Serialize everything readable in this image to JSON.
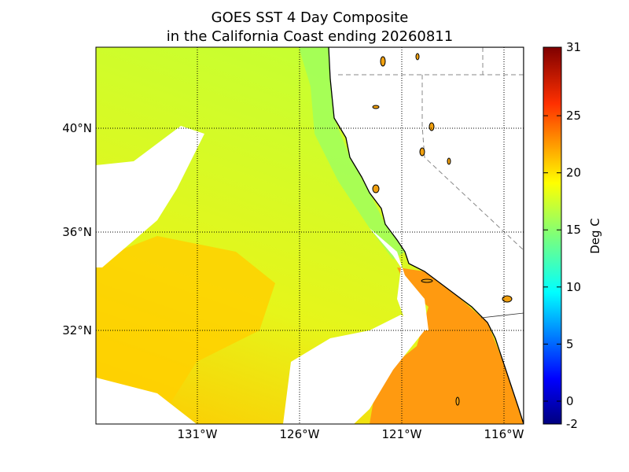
{
  "title": [
    "GOES SST 4 Day Composite",
    "in the California Coast ending 20260811"
  ],
  "map": {
    "lon_labels": [
      "131°W",
      "126°W",
      "121°W",
      "116°W"
    ],
    "lat_labels": [
      "40°N",
      "36°N",
      "32°N"
    ]
  },
  "colorbar": {
    "label": "Deg C",
    "ticks": [
      -2,
      0,
      5,
      10,
      15,
      20,
      25,
      31
    ]
  }
}
